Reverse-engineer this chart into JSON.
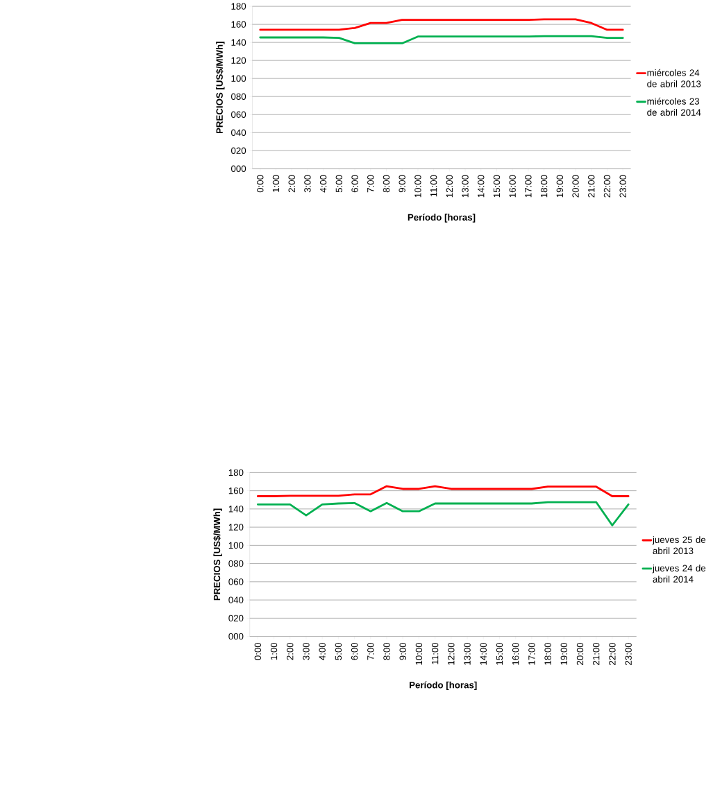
{
  "chart_data": [
    {
      "type": "line",
      "xlabel": "**Período [horas]**",
      "ylabel": "**PRECIOS [US$/MWh]**",
      "categories": [
        "0:00",
        "1:00",
        "2:00",
        "3:00",
        "4:00",
        "5:00",
        "6:00",
        "7:00",
        "8:00",
        "9:00",
        "10:00",
        "11:00",
        "12:00",
        "13:00",
        "14:00",
        "15:00",
        "16:00",
        "17:00",
        "18:00",
        "19:00",
        "20:00",
        "21:00",
        "22:00",
        "23:00"
      ],
      "series": [
        {
          "name": "miércoles 24 de abril 2013",
          "color": "#ff0000",
          "values": [
            154,
            154,
            154,
            154,
            154,
            154,
            156,
            161.5,
            161.5,
            165,
            165,
            165,
            165,
            165,
            165,
            165,
            165,
            165,
            165.5,
            165.5,
            165.5,
            161.5,
            154,
            154
          ]
        },
        {
          "name": "miércoles 23 de abril 2014",
          "color": "#00b050",
          "values": [
            145.5,
            145.5,
            145.5,
            145.5,
            145.5,
            145,
            139,
            139,
            139,
            139,
            146.5,
            146.5,
            146.5,
            146.5,
            146.5,
            146.5,
            146.5,
            146.5,
            147,
            147,
            147,
            147,
            145,
            145
          ]
        }
      ],
      "ylim": [
        0,
        180
      ],
      "yticks": [
        {
          "value": 0,
          "label": "000"
        },
        {
          "value": 20,
          "label": "020"
        },
        {
          "value": 40,
          "label": "040"
        },
        {
          "value": 60,
          "label": "060"
        },
        {
          "value": 80,
          "label": "080"
        },
        100,
        120,
        140,
        160,
        180
      ],
      "grid": "y",
      "legend": "right"
    },
    {
      "type": "line",
      "xlabel": "**Período [horas]**",
      "ylabel": "**PRECIOS [US$/MWh]**",
      "categories": [
        "0:00",
        "1:00",
        "2:00",
        "3:00",
        "4:00",
        "5:00",
        "6:00",
        "7:00",
        "8:00",
        "9:00",
        "10:00",
        "11:00",
        "12:00",
        "13:00",
        "14:00",
        "15:00",
        "16:00",
        "17:00",
        "18:00",
        "19:00",
        "20:00",
        "21:00",
        "22:00",
        "23:00"
      ],
      "series": [
        {
          "name": "jueves 25 de abril 2013",
          "color": "#ff0000",
          "values": [
            154,
            154,
            154.5,
            154.5,
            154.5,
            154.5,
            156,
            156,
            165,
            162,
            162,
            165,
            162,
            162,
            162,
            162,
            162,
            162,
            164.5,
            164.5,
            164.5,
            164.5,
            154,
            154
          ]
        },
        {
          "name": "jueves 24 de abril 2014",
          "color": "#00b050",
          "values": [
            145,
            145,
            145,
            133,
            145,
            146,
            146.5,
            137.5,
            146.5,
            137.5,
            137.5,
            146,
            146,
            146,
            146,
            146,
            146,
            146,
            147.5,
            147.5,
            147.5,
            147.5,
            122,
            145
          ]
        }
      ],
      "ylim": [
        0,
        180
      ],
      "yticks": [
        {
          "value": 0,
          "label": "000"
        },
        {
          "value": 20,
          "label": "020"
        },
        {
          "value": 40,
          "label": "040"
        },
        {
          "value": 60,
          "label": "060"
        },
        {
          "value": 80,
          "label": "080"
        },
        100,
        120,
        140,
        160,
        180
      ],
      "grid": "y",
      "legend": "right"
    }
  ]
}
